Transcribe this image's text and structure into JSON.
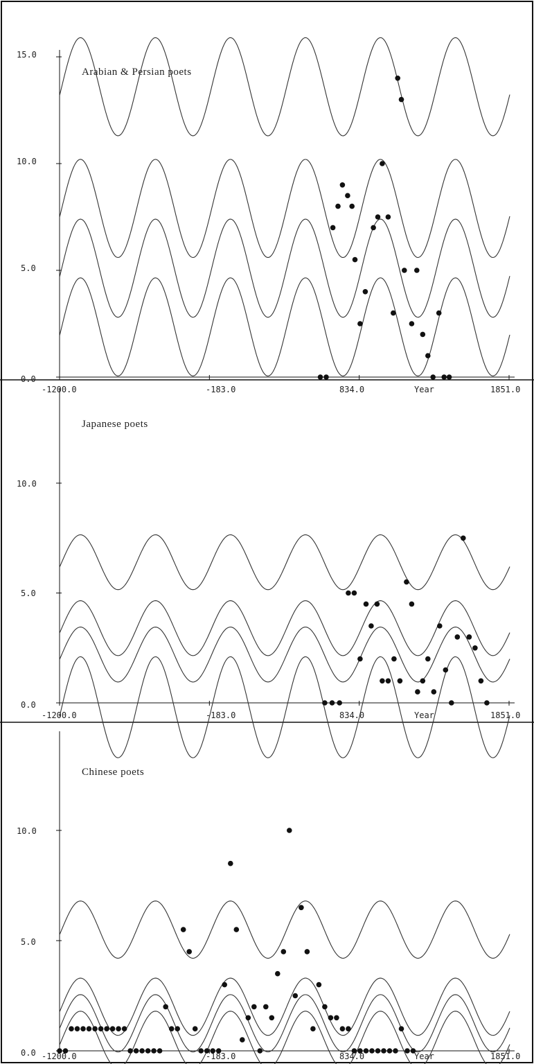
{
  "chart_data": [
    {
      "type": "scatter",
      "title": "Arabian & Persian poets",
      "xlabel": "Year",
      "ylabel": "",
      "xlim": [
        -1200,
        1851
      ],
      "ylim": [
        0,
        15
      ],
      "x_ticks": [
        "-1200.0",
        "-183.0",
        "834.0",
        "1851.0"
      ],
      "y_ticks": [
        "0.0",
        "5.0",
        "10.0",
        "15.0"
      ],
      "grid": false,
      "curves": [
        {
          "amplitude": 2.3,
          "midline": 2.35,
          "period": 509,
          "phase_x": 0
        },
        {
          "amplitude": 2.3,
          "midline": 5.1,
          "period": 509,
          "phase_x": 0
        },
        {
          "amplitude": 2.3,
          "midline": 7.9,
          "period": 509,
          "phase_x": 0
        },
        {
          "amplitude": 2.3,
          "midline": 13.6,
          "period": 509,
          "phase_x": 0
        }
      ],
      "points": [
        {
          "x": 570,
          "y": 0
        },
        {
          "x": 610,
          "y": 0
        },
        {
          "x": 655,
          "y": 7
        },
        {
          "x": 690,
          "y": 8
        },
        {
          "x": 720,
          "y": 9
        },
        {
          "x": 755,
          "y": 8.5
        },
        {
          "x": 785,
          "y": 8
        },
        {
          "x": 805,
          "y": 5.5
        },
        {
          "x": 840,
          "y": 2.5
        },
        {
          "x": 875,
          "y": 4
        },
        {
          "x": 930,
          "y": 7
        },
        {
          "x": 960,
          "y": 7.5
        },
        {
          "x": 990,
          "y": 10
        },
        {
          "x": 1030,
          "y": 7.5
        },
        {
          "x": 1065,
          "y": 3
        },
        {
          "x": 1095,
          "y": 14
        },
        {
          "x": 1120,
          "y": 13
        },
        {
          "x": 1140,
          "y": 5
        },
        {
          "x": 1190,
          "y": 2.5
        },
        {
          "x": 1225,
          "y": 5
        },
        {
          "x": 1265,
          "y": 2
        },
        {
          "x": 1300,
          "y": 1
        },
        {
          "x": 1335,
          "y": 0
        },
        {
          "x": 1375,
          "y": 3
        },
        {
          "x": 1410,
          "y": 0
        },
        {
          "x": 1445,
          "y": 0
        }
      ]
    },
    {
      "type": "scatter",
      "title": "Japanese poets",
      "xlabel": "Year",
      "ylabel": "",
      "xlim": [
        -1200,
        1851
      ],
      "ylim": [
        0,
        14
      ],
      "x_ticks": [
        "-1200.0",
        "-183.0",
        "834.0",
        "1851.0"
      ],
      "y_ticks": [
        "0.0",
        "5.0",
        "10.0"
      ],
      "grid": false,
      "curves": [
        {
          "amplitude": 2.3,
          "midline": -0.2,
          "period": 509,
          "phase_x": 0
        },
        {
          "amplitude": 1.25,
          "midline": 2.2,
          "period": 509,
          "phase_x": 0
        },
        {
          "amplitude": 1.25,
          "midline": 3.4,
          "period": 509,
          "phase_x": 0
        },
        {
          "amplitude": 1.25,
          "midline": 6.4,
          "period": 509,
          "phase_x": 0
        }
      ],
      "points": [
        {
          "x": 600,
          "y": 0
        },
        {
          "x": 650,
          "y": 0
        },
        {
          "x": 700,
          "y": 0
        },
        {
          "x": 760,
          "y": 5
        },
        {
          "x": 800,
          "y": 5
        },
        {
          "x": 840,
          "y": 2
        },
        {
          "x": 880,
          "y": 4.5
        },
        {
          "x": 915,
          "y": 3.5
        },
        {
          "x": 955,
          "y": 4.5
        },
        {
          "x": 990,
          "y": 1
        },
        {
          "x": 1030,
          "y": 1
        },
        {
          "x": 1070,
          "y": 2
        },
        {
          "x": 1110,
          "y": 1
        },
        {
          "x": 1155,
          "y": 5.5
        },
        {
          "x": 1190,
          "y": 4.5
        },
        {
          "x": 1230,
          "y": 0.5
        },
        {
          "x": 1265,
          "y": 1
        },
        {
          "x": 1300,
          "y": 2
        },
        {
          "x": 1340,
          "y": 0.5
        },
        {
          "x": 1380,
          "y": 3.5
        },
        {
          "x": 1420,
          "y": 1.5
        },
        {
          "x": 1460,
          "y": 0
        },
        {
          "x": 1500,
          "y": 3
        },
        {
          "x": 1540,
          "y": 7.5
        },
        {
          "x": 1580,
          "y": 3
        },
        {
          "x": 1620,
          "y": 2.5
        },
        {
          "x": 1660,
          "y": 1
        },
        {
          "x": 1700,
          "y": 0
        }
      ]
    },
    {
      "type": "scatter",
      "title": "Chinese poets",
      "xlabel": "Year",
      "ylabel": "",
      "xlim": [
        -1200,
        1851
      ],
      "ylim": [
        0,
        14
      ],
      "x_ticks": [
        "-1200.0",
        "-183.0",
        "834.0",
        "1851.0"
      ],
      "y_ticks": [
        "0.0",
        "5.0",
        "10.0"
      ],
      "grid": false,
      "curves": [
        {
          "amplitude": 1.3,
          "midline": 0.5,
          "period": 509,
          "phase_x": 0
        },
        {
          "amplitude": 1.3,
          "midline": 1.25,
          "period": 509,
          "phase_x": 0
        },
        {
          "amplitude": 1.3,
          "midline": 2.0,
          "period": 509,
          "phase_x": 0
        },
        {
          "amplitude": 1.3,
          "midline": 5.5,
          "period": 509,
          "phase_x": 0
        }
      ],
      "points": [
        {
          "x": -1200,
          "y": 0
        },
        {
          "x": -1160,
          "y": 0
        },
        {
          "x": -1120,
          "y": 1
        },
        {
          "x": -1080,
          "y": 1
        },
        {
          "x": -1040,
          "y": 1
        },
        {
          "x": -1000,
          "y": 1
        },
        {
          "x": -960,
          "y": 1
        },
        {
          "x": -920,
          "y": 1
        },
        {
          "x": -880,
          "y": 1
        },
        {
          "x": -840,
          "y": 1
        },
        {
          "x": -800,
          "y": 1
        },
        {
          "x": -760,
          "y": 1
        },
        {
          "x": -720,
          "y": 0
        },
        {
          "x": -680,
          "y": 0
        },
        {
          "x": -640,
          "y": 0
        },
        {
          "x": -600,
          "y": 0
        },
        {
          "x": -560,
          "y": 0
        },
        {
          "x": -520,
          "y": 0
        },
        {
          "x": -480,
          "y": 2
        },
        {
          "x": -440,
          "y": 1
        },
        {
          "x": -400,
          "y": 1
        },
        {
          "x": -360,
          "y": 5.5
        },
        {
          "x": -320,
          "y": 4.5
        },
        {
          "x": -280,
          "y": 1
        },
        {
          "x": -240,
          "y": 0
        },
        {
          "x": -200,
          "y": 0
        },
        {
          "x": -160,
          "y": 0
        },
        {
          "x": -120,
          "y": 0
        },
        {
          "x": -80,
          "y": 3
        },
        {
          "x": -40,
          "y": 8.5
        },
        {
          "x": 0,
          "y": 5.5
        },
        {
          "x": 40,
          "y": 0.5
        },
        {
          "x": 80,
          "y": 1.5
        },
        {
          "x": 120,
          "y": 2
        },
        {
          "x": 160,
          "y": 0
        },
        {
          "x": 200,
          "y": 2
        },
        {
          "x": 240,
          "y": 1.5
        },
        {
          "x": 280,
          "y": 3.5
        },
        {
          "x": 320,
          "y": 4.5
        },
        {
          "x": 360,
          "y": 10
        },
        {
          "x": 400,
          "y": 2.5
        },
        {
          "x": 440,
          "y": 6.5
        },
        {
          "x": 480,
          "y": 4.5
        },
        {
          "x": 520,
          "y": 1
        },
        {
          "x": 560,
          "y": 3
        },
        {
          "x": 600,
          "y": 2
        },
        {
          "x": 640,
          "y": 1.5
        },
        {
          "x": 680,
          "y": 1.5
        },
        {
          "x": 720,
          "y": 1
        },
        {
          "x": 760,
          "y": 1
        },
        {
          "x": 800,
          "y": 0
        },
        {
          "x": 840,
          "y": 0
        },
        {
          "x": 880,
          "y": 0
        },
        {
          "x": 920,
          "y": 0
        },
        {
          "x": 960,
          "y": 0
        },
        {
          "x": 1000,
          "y": 0
        },
        {
          "x": 1040,
          "y": 0
        },
        {
          "x": 1080,
          "y": 0
        },
        {
          "x": 1120,
          "y": 1
        },
        {
          "x": 1160,
          "y": 0
        },
        {
          "x": 1200,
          "y": 0
        }
      ]
    }
  ]
}
